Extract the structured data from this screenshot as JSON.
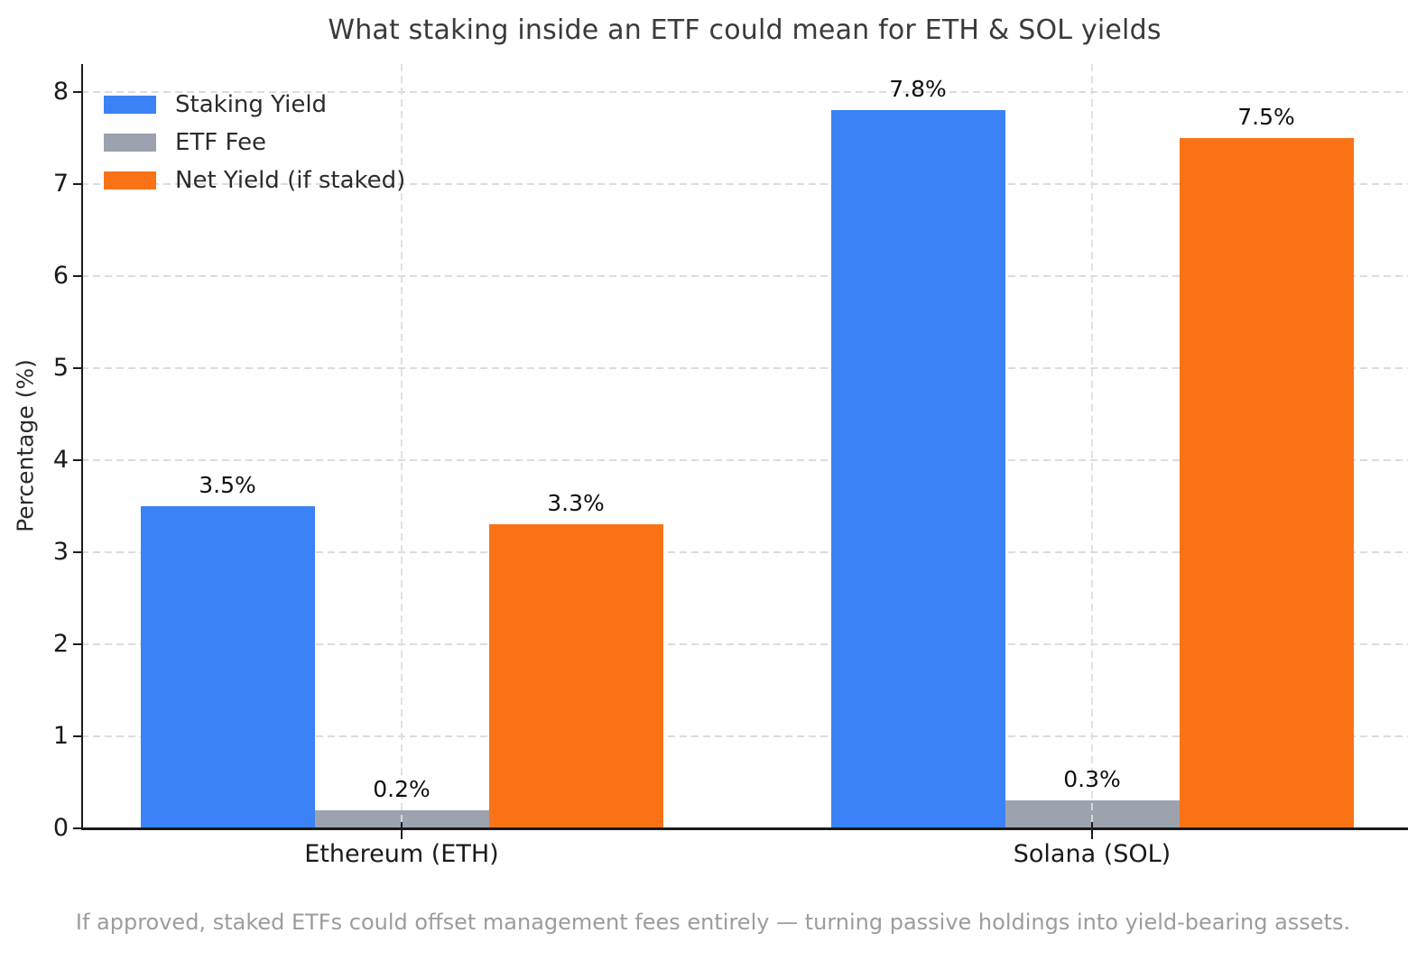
{
  "chart_data": {
    "type": "bar",
    "title": "What staking inside an ETF could mean for ETH & SOL yields",
    "categories": [
      "Ethereum (ETH)",
      "Solana (SOL)"
    ],
    "series": [
      {
        "name": "Staking Yield",
        "color": "#3b82f6",
        "values": [
          3.5,
          7.8
        ],
        "value_labels": [
          "3.5%",
          "7.8%"
        ]
      },
      {
        "name": "ETF Fee",
        "color": "#9ca3af",
        "values": [
          0.2,
          0.3
        ],
        "value_labels": [
          "0.2%",
          "0.3%"
        ]
      },
      {
        "name": "Net Yield (if staked)",
        "color": "#f97316",
        "values": [
          3.3,
          7.5
        ],
        "value_labels": [
          "3.3%",
          "7.5%"
        ]
      }
    ],
    "xlabel": "",
    "ylabel": "Percentage (%)",
    "ylim": [
      0,
      8.3
    ],
    "yticks": [
      0,
      1,
      2,
      3,
      4,
      5,
      6,
      7,
      8
    ],
    "grid": true,
    "grid_style": "dashed",
    "legend_position": "upper left",
    "caption": "If approved, staked ETFs could offset management fees entirely — turning passive holdings into yield-bearing assets."
  }
}
